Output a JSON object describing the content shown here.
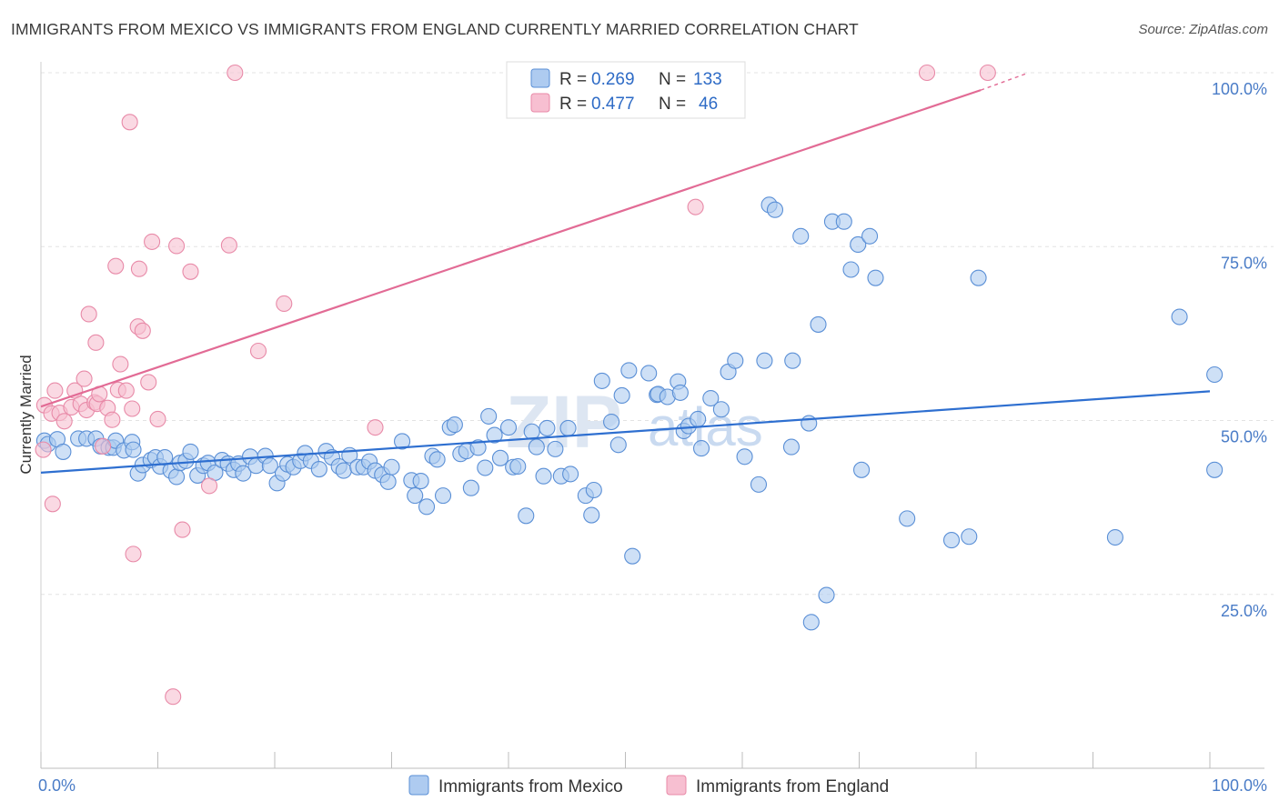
{
  "title": "IMMIGRANTS FROM MEXICO VS IMMIGRANTS FROM ENGLAND CURRENTLY MARRIED CORRELATION CHART",
  "source": "Source: ZipAtlas.com",
  "watermark": {
    "zip": "ZIP",
    "atlas": "atlas"
  },
  "colors": {
    "mexico_fill": "#aecbf0",
    "mexico_stroke": "#5a8fd6",
    "mexico_line": "#2e6fd0",
    "england_fill": "#f7bfd1",
    "england_stroke": "#e88aa8",
    "england_line": "#e26b95",
    "grid": "#e3e3e3",
    "tick_label": "#4a7cc7"
  },
  "legend": {
    "rows": [
      {
        "r_label": "R =",
        "r_value": "0.269",
        "n_label": "N =",
        "n_value": "133"
      },
      {
        "r_label": "R =",
        "r_value": "0.477",
        "n_label": "N =",
        "n_value": "46"
      }
    ]
  },
  "chart_data": {
    "type": "scatter",
    "title": "IMMIGRANTS FROM MEXICO VS IMMIGRANTS FROM ENGLAND CURRENTLY MARRIED CORRELATION CHART",
    "xlabel": "",
    "ylabel": "Currently Married",
    "xlim": [
      0,
      100
    ],
    "ylim": [
      0,
      105
    ],
    "x_tick_labels": [
      {
        "value": 0,
        "label": "0.0%"
      },
      {
        "value": 100,
        "label": "100.0%"
      }
    ],
    "y_tick_labels": [
      {
        "value": 25,
        "label": "25.0%"
      },
      {
        "value": 50,
        "label": "50.0%"
      },
      {
        "value": 75,
        "label": "75.0%"
      },
      {
        "value": 100,
        "label": "100.0%"
      }
    ],
    "grid": true,
    "legend_position": "top-center",
    "series": [
      {
        "name": "Immigrants from Mexico",
        "color": "#aecbf0",
        "trend": {
          "x": [
            0,
            100
          ],
          "y": [
            42.5,
            54.2
          ]
        },
        "points": [
          [
            0.3,
            47.1
          ],
          [
            0.6,
            46.6
          ],
          [
            1.4,
            47.3
          ],
          [
            1.9,
            45.5
          ],
          [
            3.2,
            47.4
          ],
          [
            3.9,
            47.4
          ],
          [
            4.7,
            47.4
          ],
          [
            5.1,
            46.3
          ],
          [
            5.8,
            46.1
          ],
          [
            6.2,
            46.1
          ],
          [
            6.4,
            47.1
          ],
          [
            7.1,
            45.7
          ],
          [
            7.8,
            46.9
          ],
          [
            7.9,
            45.8
          ],
          [
            8.3,
            42.4
          ],
          [
            8.7,
            43.6
          ],
          [
            9.4,
            44.3
          ],
          [
            9.8,
            44.7
          ],
          [
            10.2,
            43.4
          ],
          [
            10.6,
            44.7
          ],
          [
            11.1,
            42.8
          ],
          [
            11.6,
            41.9
          ],
          [
            11.9,
            43.9
          ],
          [
            12.4,
            44.2
          ],
          [
            12.8,
            45.5
          ],
          [
            13.4,
            42.1
          ],
          [
            13.9,
            43.5
          ],
          [
            14.3,
            43.9
          ],
          [
            14.9,
            42.5
          ],
          [
            15.5,
            44.3
          ],
          [
            16.0,
            43.8
          ],
          [
            16.5,
            42.9
          ],
          [
            16.9,
            43.8
          ],
          [
            17.3,
            42.4
          ],
          [
            17.9,
            44.8
          ],
          [
            18.4,
            43.5
          ],
          [
            19.2,
            44.9
          ],
          [
            19.6,
            43.5
          ],
          [
            20.2,
            41.0
          ],
          [
            20.7,
            42.4
          ],
          [
            21.1,
            43.7
          ],
          [
            21.6,
            43.3
          ],
          [
            22.2,
            44.2
          ],
          [
            22.6,
            45.3
          ],
          [
            23.1,
            44.2
          ],
          [
            23.8,
            43.0
          ],
          [
            24.4,
            45.6
          ],
          [
            24.9,
            44.7
          ],
          [
            25.5,
            43.4
          ],
          [
            25.9,
            42.8
          ],
          [
            26.4,
            45.0
          ],
          [
            27.1,
            43.3
          ],
          [
            27.6,
            43.3
          ],
          [
            28.1,
            44.1
          ],
          [
            28.6,
            42.8
          ],
          [
            29.2,
            42.2
          ],
          [
            29.7,
            41.2
          ],
          [
            30.0,
            43.3
          ],
          [
            30.9,
            47.0
          ],
          [
            31.7,
            41.4
          ],
          [
            32.0,
            39.2
          ],
          [
            32.5,
            41.3
          ],
          [
            33.0,
            37.6
          ],
          [
            33.5,
            44.9
          ],
          [
            33.9,
            44.4
          ],
          [
            34.4,
            39.2
          ],
          [
            35.0,
            49.0
          ],
          [
            35.4,
            49.4
          ],
          [
            35.9,
            45.2
          ],
          [
            36.4,
            45.6
          ],
          [
            36.8,
            40.3
          ],
          [
            37.4,
            46.1
          ],
          [
            38.0,
            43.2
          ],
          [
            38.3,
            50.6
          ],
          [
            38.8,
            47.9
          ],
          [
            39.3,
            44.6
          ],
          [
            40.0,
            49.0
          ],
          [
            40.4,
            43.3
          ],
          [
            40.8,
            43.4
          ],
          [
            41.5,
            36.3
          ],
          [
            42.0,
            48.4
          ],
          [
            42.4,
            46.2
          ],
          [
            43.0,
            42.0
          ],
          [
            43.3,
            48.9
          ],
          [
            44.0,
            45.9
          ],
          [
            44.5,
            42.0
          ],
          [
            45.1,
            48.9
          ],
          [
            45.3,
            42.3
          ],
          [
            46.6,
            39.2
          ],
          [
            47.3,
            40.0
          ],
          [
            47.1,
            36.4
          ],
          [
            48.0,
            55.7
          ],
          [
            48.8,
            49.8
          ],
          [
            49.4,
            46.5
          ],
          [
            49.7,
            53.6
          ],
          [
            50.3,
            57.2
          ],
          [
            50.6,
            30.5
          ],
          [
            52.0,
            56.8
          ],
          [
            52.7,
            53.7
          ],
          [
            52.8,
            53.8
          ],
          [
            53.6,
            53.4
          ],
          [
            54.5,
            55.6
          ],
          [
            54.7,
            54.0
          ],
          [
            55.0,
            48.5
          ],
          [
            55.4,
            49.2
          ],
          [
            56.2,
            50.2
          ],
          [
            56.5,
            46.0
          ],
          [
            57.3,
            53.2
          ],
          [
            58.2,
            51.6
          ],
          [
            58.8,
            57.0
          ],
          [
            59.4,
            58.6
          ],
          [
            60.2,
            44.8
          ],
          [
            61.4,
            40.8
          ],
          [
            61.9,
            58.6
          ],
          [
            62.3,
            81.0
          ],
          [
            62.8,
            80.3
          ],
          [
            64.2,
            46.2
          ],
          [
            64.3,
            58.6
          ],
          [
            65.0,
            76.5
          ],
          [
            65.7,
            49.6
          ],
          [
            65.9,
            21.0
          ],
          [
            66.5,
            63.8
          ],
          [
            67.2,
            24.9
          ],
          [
            67.7,
            78.6
          ],
          [
            68.7,
            78.6
          ],
          [
            69.3,
            71.7
          ],
          [
            69.9,
            75.3
          ],
          [
            70.2,
            42.9
          ],
          [
            70.9,
            76.5
          ],
          [
            71.4,
            70.5
          ],
          [
            74.1,
            35.9
          ],
          [
            77.9,
            32.8
          ],
          [
            79.4,
            33.3
          ],
          [
            80.2,
            70.5
          ],
          [
            91.9,
            33.2
          ],
          [
            97.4,
            64.9
          ],
          [
            100.4,
            42.9
          ],
          [
            100.4,
            56.6
          ]
        ]
      },
      {
        "name": "Immigrants from England",
        "color": "#f7bfd1",
        "trend": {
          "x": [
            0,
            80.4,
            84.5
          ],
          "y": [
            52.0,
            97.5,
            100.0
          ]
        },
        "points": [
          [
            0.2,
            45.8
          ],
          [
            0.3,
            52.2
          ],
          [
            0.9,
            51.0
          ],
          [
            1.2,
            54.3
          ],
          [
            1.6,
            51.1
          ],
          [
            2.0,
            49.9
          ],
          [
            2.6,
            51.9
          ],
          [
            2.9,
            54.3
          ],
          [
            3.4,
            52.4
          ],
          [
            3.7,
            56.0
          ],
          [
            3.9,
            51.5
          ],
          [
            4.1,
            65.3
          ],
          [
            4.6,
            52.6
          ],
          [
            4.7,
            61.2
          ],
          [
            4.8,
            52.4
          ],
          [
            5.0,
            53.8
          ],
          [
            5.3,
            46.3
          ],
          [
            5.7,
            51.8
          ],
          [
            6.1,
            50.1
          ],
          [
            6.4,
            72.2
          ],
          [
            6.6,
            54.4
          ],
          [
            6.8,
            58.1
          ],
          [
            7.3,
            54.3
          ],
          [
            7.6,
            92.9
          ],
          [
            7.8,
            51.7
          ],
          [
            7.9,
            30.8
          ],
          [
            8.3,
            63.5
          ],
          [
            8.4,
            71.8
          ],
          [
            8.7,
            62.9
          ],
          [
            9.2,
            55.5
          ],
          [
            9.5,
            75.7
          ],
          [
            10.0,
            50.2
          ],
          [
            11.3,
            10.3
          ],
          [
            11.6,
            75.1
          ],
          [
            12.1,
            34.3
          ],
          [
            12.8,
            71.4
          ],
          [
            14.4,
            40.6
          ],
          [
            16.1,
            75.2
          ],
          [
            16.6,
            100.0
          ],
          [
            18.6,
            60.0
          ],
          [
            20.8,
            66.8
          ],
          [
            28.6,
            49.0
          ],
          [
            56.0,
            80.7
          ],
          [
            75.8,
            100.0
          ],
          [
            81.0,
            100.0
          ],
          [
            1.0,
            38.0
          ]
        ]
      }
    ]
  },
  "bottom_legend": {
    "mexico_label": "Immigrants from Mexico",
    "england_label": "Immigrants from England"
  }
}
